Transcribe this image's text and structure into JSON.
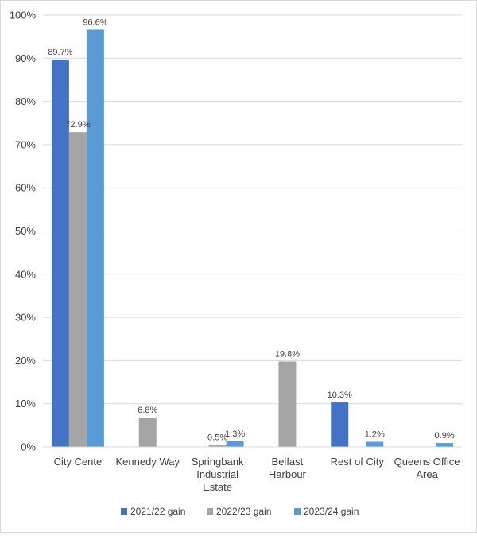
{
  "chart_data": {
    "type": "bar",
    "title": "",
    "xlabel": "",
    "ylabel": "",
    "ylim": [
      0,
      100
    ],
    "y_ticks": [
      "0%",
      "10%",
      "20%",
      "30%",
      "40%",
      "50%",
      "60%",
      "70%",
      "80%",
      "90%",
      "100%"
    ],
    "grid": true,
    "legend_position": "bottom",
    "categories": [
      [
        "City Cente"
      ],
      [
        "Kennedy Way"
      ],
      [
        "Springbank",
        "Industrial",
        "Estate"
      ],
      [
        "Belfast",
        "Harbour"
      ],
      [
        "Rest of City"
      ],
      [
        "Queens Office",
        "Area"
      ]
    ],
    "series": [
      {
        "name": "2021/22 gain",
        "color": "#4472c4",
        "values": [
          89.7,
          null,
          null,
          null,
          10.3,
          null
        ],
        "labels": [
          "89.7%",
          "",
          "",
          "",
          "10.3%",
          ""
        ]
      },
      {
        "name": "2022/23 gain",
        "color": "#a5a5a5",
        "values": [
          72.9,
          6.8,
          0.5,
          19.8,
          null,
          null
        ],
        "labels": [
          "72.9%",
          "6.8%",
          "0.5%",
          "19.8%",
          "",
          ""
        ]
      },
      {
        "name": "2023/24 gain",
        "color": "#5b9bd5",
        "values": [
          96.6,
          null,
          1.3,
          null,
          1.2,
          0.9
        ],
        "labels": [
          "96.6%",
          "",
          "1.3%",
          "",
          "1.2%",
          "0.9%"
        ]
      }
    ]
  }
}
